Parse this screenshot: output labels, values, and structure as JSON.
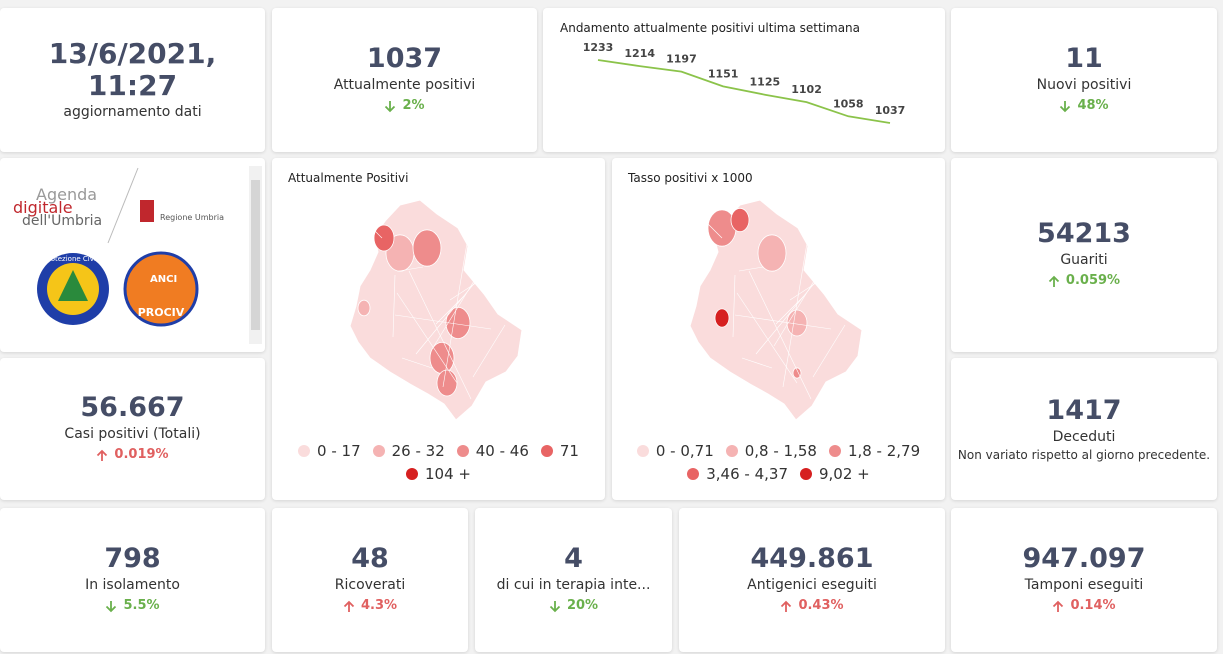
{
  "update": {
    "datetime": "13/6/2021, 11:27",
    "label": "aggiornamento dati"
  },
  "kpis": [
    {
      "value": "1037",
      "label": "Attualmente positivi",
      "delta": "2%",
      "trend": "down",
      "color": "#6ab04c"
    },
    {
      "value": "11",
      "label": "Nuovi positivi",
      "delta": "48%",
      "trend": "down",
      "color": "#6ab04c"
    },
    {
      "value": "54213",
      "label": "Guariti",
      "delta": "0.059%",
      "trend": "up",
      "color": "#6ab04c"
    },
    {
      "value": "56.667",
      "label": "Casi positivi (Totali)",
      "delta": "0.019%",
      "trend": "up",
      "color": "#e06060"
    },
    {
      "value": "1417",
      "label": "Deceduti",
      "note": "Non variato rispetto al giorno precedente."
    },
    {
      "value": "798",
      "label": "In isolamento",
      "delta": "5.5%",
      "trend": "down",
      "color": "#6ab04c"
    },
    {
      "value": "48",
      "label": "Ricoverati",
      "delta": "4.3%",
      "trend": "up",
      "color": "#e06060"
    },
    {
      "value": "4",
      "label": "di cui in terapia inte...",
      "delta": "20%",
      "trend": "down",
      "color": "#6ab04c"
    },
    {
      "value": "449.861",
      "label": "Antigenici eseguiti",
      "delta": "0.43%",
      "trend": "up",
      "color": "#e06060"
    },
    {
      "value": "947.097",
      "label": "Tamponi eseguiti",
      "delta": "0.14%",
      "trend": "up",
      "color": "#e06060"
    }
  ],
  "trend": {
    "title": "Andamento attualmente positivi ultima settimana",
    "values": [
      1233,
      1214,
      1197,
      1151,
      1125,
      1102,
      1058,
      1037
    ],
    "color": "#8bc34a"
  },
  "maps": [
    {
      "title": "Attualmente Positivi",
      "legend": [
        {
          "label": "0 - 17",
          "color": "#fadcdc"
        },
        {
          "label": "26 - 32",
          "color": "#f5b3b3"
        },
        {
          "label": "40 - 46",
          "color": "#ee8c8c"
        },
        {
          "label": "71",
          "color": "#e86464"
        },
        {
          "label": "104 +",
          "color": "#d62020"
        }
      ]
    },
    {
      "title": "Tasso positivi x 1000",
      "legend": [
        {
          "label": "0 - 0,71",
          "color": "#fadcdc"
        },
        {
          "label": "0,8 - 1,58",
          "color": "#f5b3b3"
        },
        {
          "label": "1,8 - 2,79",
          "color": "#ee8c8c"
        },
        {
          "label": "3,46 - 4,37",
          "color": "#e86464"
        },
        {
          "label": "9,02 +",
          "color": "#d62020"
        }
      ]
    }
  ],
  "logos": {
    "agenda": "Agenda",
    "digitale": "digitale",
    "umbria": "dell'Umbria",
    "regione": "Regione Umbria",
    "protezione": "Protezione Civile",
    "anci": "ANCI",
    "prociv": "PROCIV"
  }
}
